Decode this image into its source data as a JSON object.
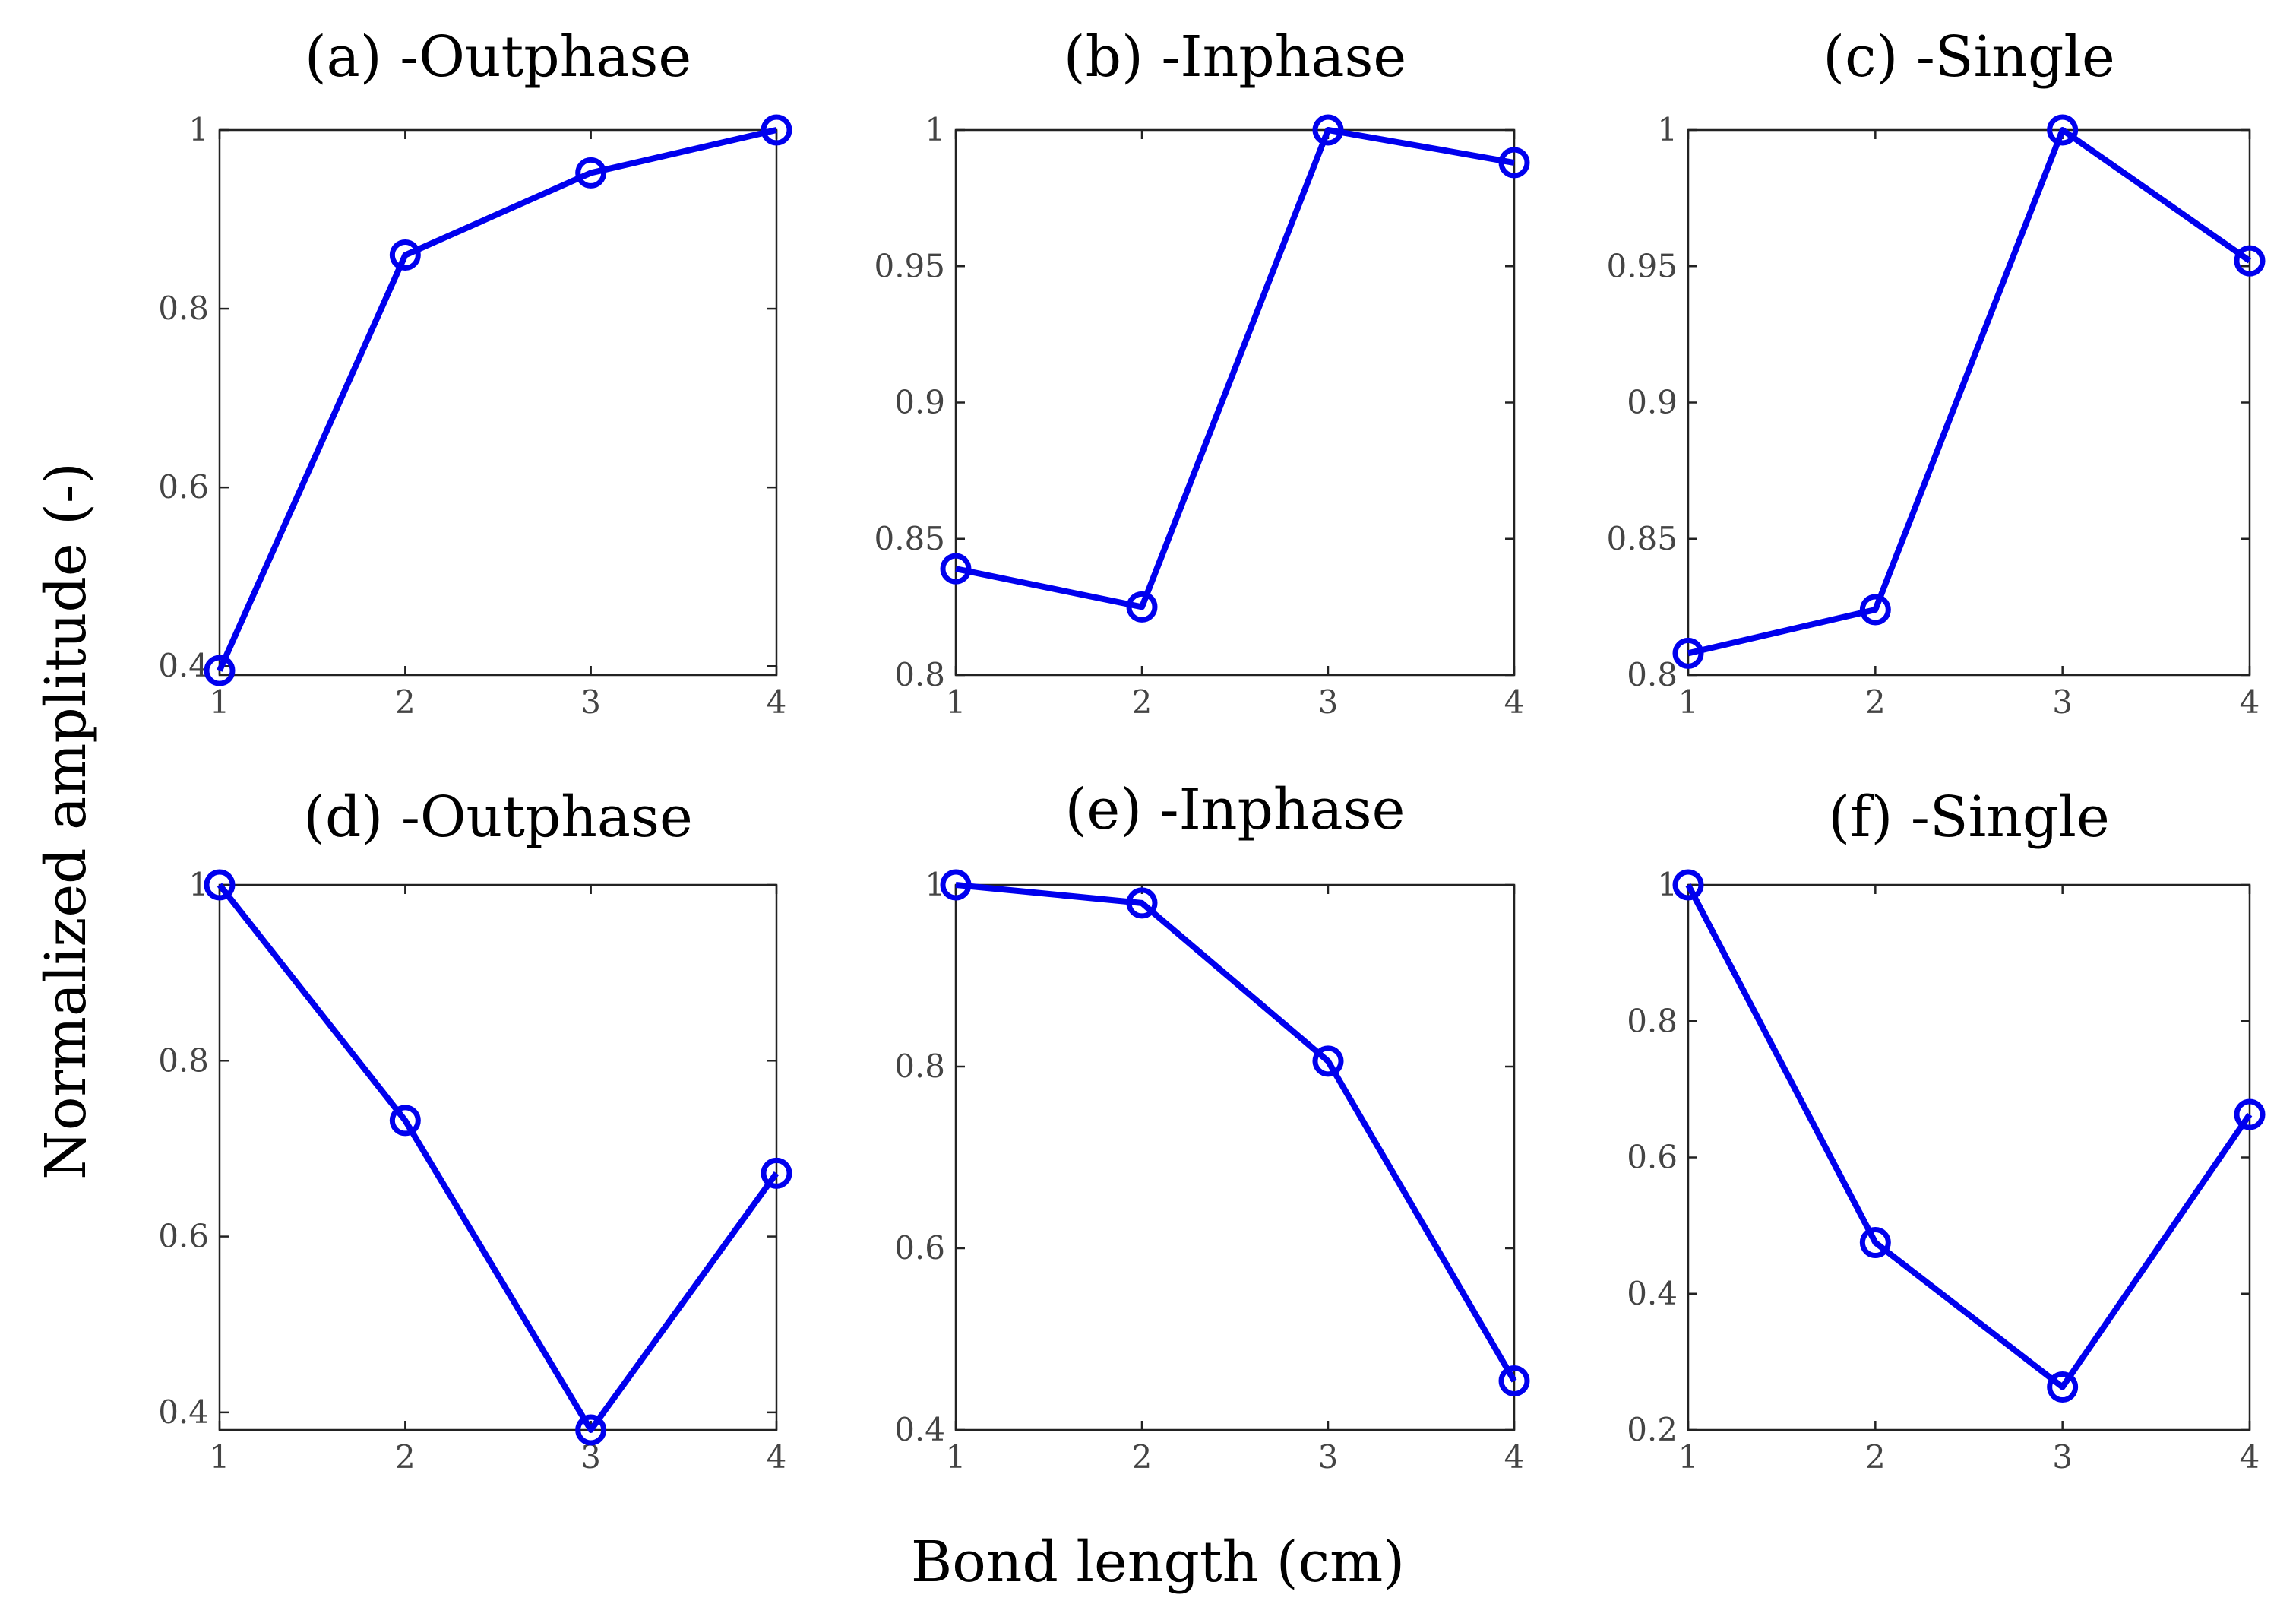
{
  "figure": {
    "ylabel": "Normalized amplitude (-)",
    "xlabel": "Bond length (cm)"
  },
  "colors": {
    "series": "#0000ee",
    "axes": "#222222",
    "tick_text": "#444444"
  },
  "chart_data": [
    {
      "type": "line",
      "title": "(a) -Outphase",
      "x": [
        1,
        2,
        3,
        4
      ],
      "values": [
        0.395,
        0.86,
        0.952,
        1.0
      ],
      "xlim": [
        1,
        4
      ],
      "ylim": [
        0.39,
        1.0
      ],
      "xticks": [
        1,
        2,
        3,
        4
      ],
      "xtick_labels": [
        "1",
        "2",
        "3",
        "4"
      ],
      "yticks": [
        0.4,
        0.6,
        0.8,
        1.0
      ],
      "ytick_labels": [
        "0.4",
        "0.6",
        "0.8",
        "1"
      ],
      "marker": "circle-open"
    },
    {
      "type": "line",
      "title": "(b) -Inphase",
      "x": [
        1,
        2,
        3,
        4
      ],
      "values": [
        0.839,
        0.825,
        1.0,
        0.988
      ],
      "xlim": [
        1,
        4
      ],
      "ylim": [
        0.8,
        1.0
      ],
      "xticks": [
        1,
        2,
        3,
        4
      ],
      "xtick_labels": [
        "1",
        "2",
        "3",
        "4"
      ],
      "yticks": [
        0.8,
        0.85,
        0.9,
        0.95,
        1.0
      ],
      "ytick_labels": [
        "0.8",
        "0.85",
        "0.9",
        "0.95",
        "1"
      ],
      "marker": "circle-open"
    },
    {
      "type": "line",
      "title": "(c) -Single",
      "x": [
        1,
        2,
        3,
        4
      ],
      "values": [
        0.808,
        0.824,
        1.0,
        0.952
      ],
      "xlim": [
        1,
        4
      ],
      "ylim": [
        0.8,
        1.0
      ],
      "xticks": [
        1,
        2,
        3,
        4
      ],
      "xtick_labels": [
        "1",
        "2",
        "3",
        "4"
      ],
      "yticks": [
        0.8,
        0.85,
        0.9,
        0.95,
        1.0
      ],
      "ytick_labels": [
        "0.8",
        "0.85",
        "0.9",
        "0.95",
        "1"
      ],
      "marker": "circle-open"
    },
    {
      "type": "line",
      "title": "(d) -Outphase",
      "x": [
        1,
        2,
        3,
        4
      ],
      "values": [
        1.0,
        0.732,
        0.38,
        0.672
      ],
      "xlim": [
        1,
        4
      ],
      "ylim": [
        0.38,
        1.0
      ],
      "xticks": [
        1,
        2,
        3,
        4
      ],
      "xtick_labels": [
        "1",
        "2",
        "3",
        "4"
      ],
      "yticks": [
        0.4,
        0.6,
        0.8,
        1.0
      ],
      "ytick_labels": [
        "0.4",
        "0.6",
        "0.8",
        "1"
      ],
      "marker": "circle-open"
    },
    {
      "type": "line",
      "title": "(e) -Inphase",
      "x": [
        1,
        2,
        3,
        4
      ],
      "values": [
        1.0,
        0.98,
        0.806,
        0.454
      ],
      "xlim": [
        1,
        4
      ],
      "ylim": [
        0.4,
        1.0
      ],
      "xticks": [
        1,
        2,
        3,
        4
      ],
      "xtick_labels": [
        "1",
        "2",
        "3",
        "4"
      ],
      "yticks": [
        0.4,
        0.6,
        0.8,
        1.0
      ],
      "ytick_labels": [
        "0.4",
        "0.6",
        "0.8",
        "1"
      ],
      "marker": "circle-open"
    },
    {
      "type": "line",
      "title": "(f) -Single",
      "x": [
        1,
        2,
        3,
        4
      ],
      "values": [
        1.0,
        0.475,
        0.263,
        0.663
      ],
      "xlim": [
        1,
        4
      ],
      "ylim": [
        0.2,
        1.0
      ],
      "xticks": [
        1,
        2,
        3,
        4
      ],
      "xtick_labels": [
        "1",
        "2",
        "3",
        "4"
      ],
      "yticks": [
        0.2,
        0.4,
        0.6,
        0.8,
        1.0
      ],
      "ytick_labels": [
        "0.2",
        "0.4",
        "0.6",
        "0.8",
        "1"
      ],
      "marker": "circle-open"
    }
  ]
}
